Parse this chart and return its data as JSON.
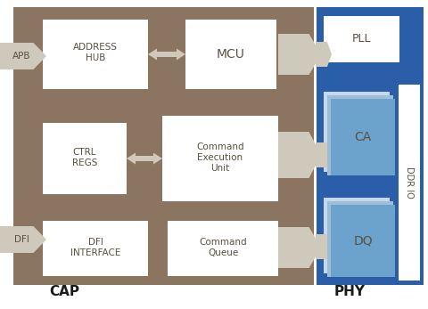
{
  "bg_color": "#ffffff",
  "cap_bg": "#8B7560",
  "phy_bg": "#2B5EA8",
  "box_white": "#ffffff",
  "box_light_blue1": "#C5D8EC",
  "box_light_blue2": "#A0BDD8",
  "box_blue": "#6BA3CC",
  "arrow_color": "#CFC9BC",
  "cap_label": "CAP",
  "phy_label": "PHY",
  "text_dark": "#5A5040",
  "text_blue_label": "#2B5EA8",
  "ddr_io_text": "DDR IO"
}
